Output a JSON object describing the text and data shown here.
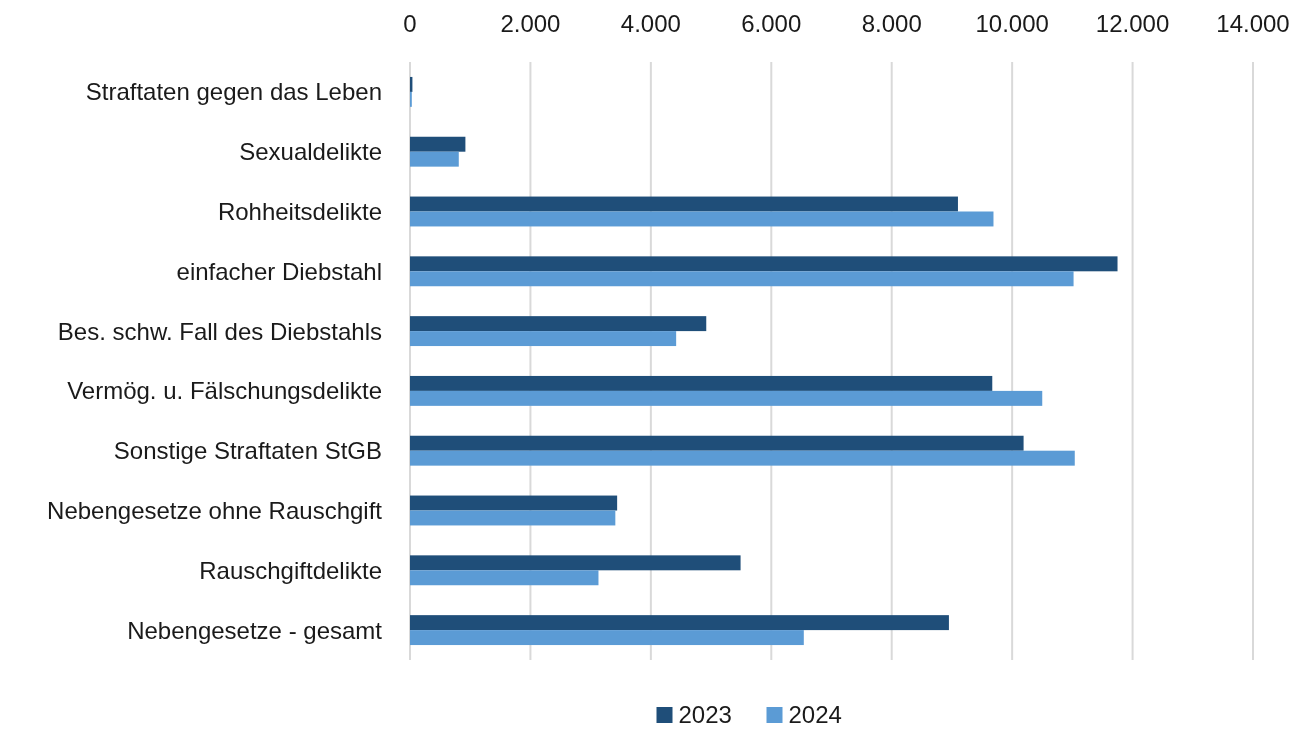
{
  "chart_data": {
    "type": "bar",
    "orientation": "horizontal",
    "categories": [
      "Straftaten gegen das Leben",
      "Sexualdelikte",
      "Rohheitsdelikte",
      "einfacher Diebstahl",
      "Bes. schw. Fall des Diebstahls",
      "Vermög. u. Fälschungsdelikte",
      "Sonstige Straftaten StGB",
      "Nebengesetze ohne Rauschgift",
      "Rauschgiftdelikte",
      "Nebengesetze - gesamt"
    ],
    "series": [
      {
        "name": "2023",
        "color": "#1f4e79",
        "values": [
          40,
          920,
          9100,
          11750,
          4920,
          9670,
          10190,
          3440,
          5490,
          8950
        ]
      },
      {
        "name": "2024",
        "color": "#5b9bd5",
        "values": [
          30,
          810,
          9690,
          11020,
          4420,
          10500,
          11040,
          3410,
          3130,
          6540
        ]
      }
    ],
    "xlim": [
      0,
      14000
    ],
    "xticks": [
      0,
      {
        "value": 2000,
        "label": "2.000"
      },
      {
        "value": 4000,
        "label": "4.000"
      },
      {
        "value": 6000,
        "label": "6.000"
      },
      {
        "value": 8000,
        "label": "8.000"
      },
      {
        "value": 10000,
        "label": "10.000"
      },
      {
        "value": 12000,
        "label": "12.000"
      },
      {
        "value": 14000,
        "label": "14.000"
      }
    ],
    "grid": "x",
    "legend": "bottom"
  }
}
